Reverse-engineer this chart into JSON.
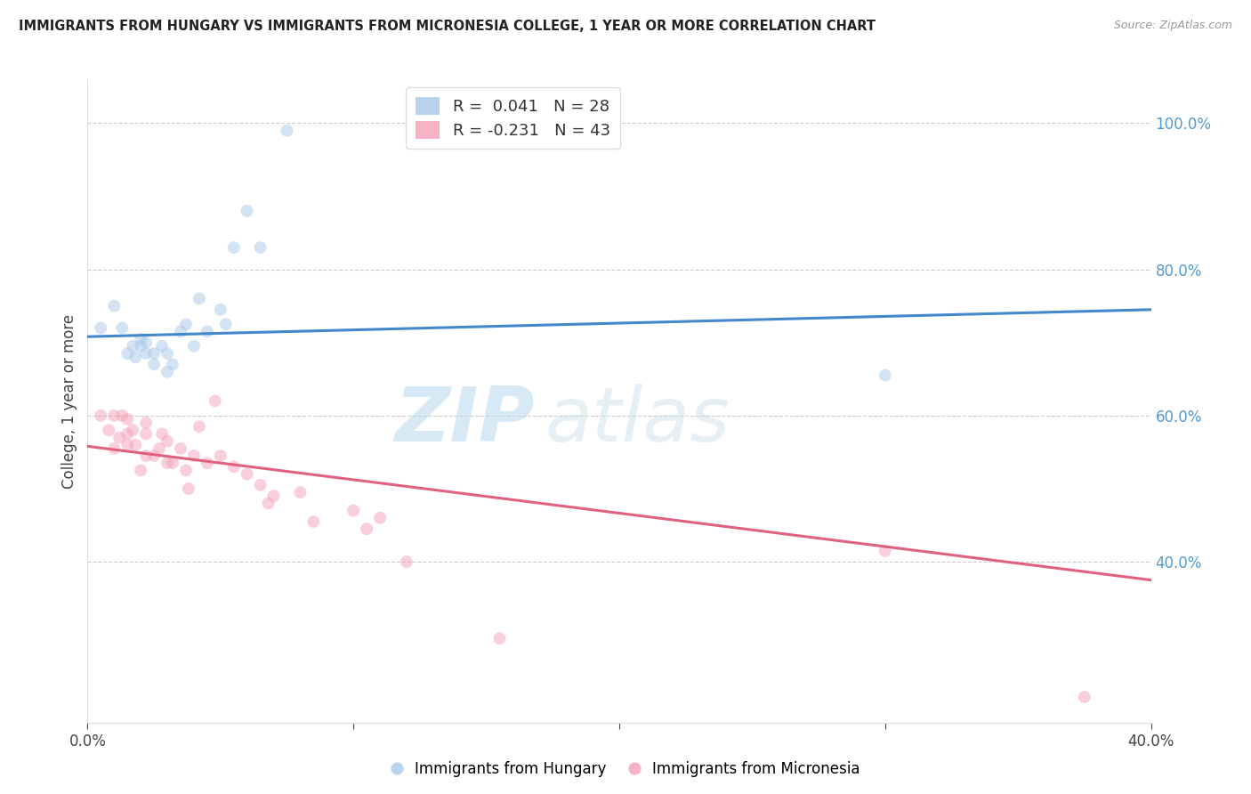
{
  "title": "IMMIGRANTS FROM HUNGARY VS IMMIGRANTS FROM MICRONESIA COLLEGE, 1 YEAR OR MORE CORRELATION CHART",
  "source": "Source: ZipAtlas.com",
  "ylabel": "College, 1 year or more",
  "xlim": [
    0.0,
    0.4
  ],
  "ylim": [
    0.18,
    1.06
  ],
  "xticks": [
    0.0,
    0.1,
    0.2,
    0.3,
    0.4
  ],
  "xticklabels": [
    "0.0%",
    "",
    "",
    "",
    "40.0%"
  ],
  "yticks_right": [
    0.4,
    0.6,
    0.8,
    1.0
  ],
  "yticklabels_right": [
    "40.0%",
    "60.0%",
    "80.0%",
    "100.0%"
  ],
  "legend_r_blue": "R =  0.041",
  "legend_n_blue": "N = 28",
  "legend_r_pink": "R = -0.231",
  "legend_n_pink": "N = 43",
  "blue_color": "#a8c8e8",
  "pink_color": "#f4a0b8",
  "blue_line_color": "#4488cc",
  "pink_line_color": "#e06080",
  "watermark_zip": "ZIP",
  "watermark_atlas": "atlas",
  "blue_scatter_x": [
    0.005,
    0.01,
    0.013,
    0.015,
    0.017,
    0.018,
    0.02,
    0.02,
    0.022,
    0.022,
    0.025,
    0.025,
    0.028,
    0.03,
    0.03,
    0.032,
    0.035,
    0.037,
    0.04,
    0.042,
    0.045,
    0.05,
    0.052,
    0.055,
    0.06,
    0.065,
    0.075,
    0.3
  ],
  "blue_scatter_y": [
    0.72,
    0.75,
    0.72,
    0.685,
    0.695,
    0.68,
    0.695,
    0.705,
    0.685,
    0.7,
    0.685,
    0.67,
    0.695,
    0.66,
    0.685,
    0.67,
    0.715,
    0.725,
    0.695,
    0.76,
    0.715,
    0.745,
    0.725,
    0.83,
    0.88,
    0.83,
    0.99,
    0.655
  ],
  "pink_scatter_x": [
    0.005,
    0.008,
    0.01,
    0.01,
    0.012,
    0.013,
    0.015,
    0.015,
    0.015,
    0.017,
    0.018,
    0.02,
    0.022,
    0.022,
    0.022,
    0.025,
    0.027,
    0.028,
    0.03,
    0.03,
    0.032,
    0.035,
    0.037,
    0.038,
    0.04,
    0.042,
    0.045,
    0.048,
    0.05,
    0.055,
    0.06,
    0.065,
    0.068,
    0.07,
    0.08,
    0.085,
    0.1,
    0.105,
    0.11,
    0.12,
    0.155,
    0.3,
    0.375
  ],
  "pink_scatter_y": [
    0.6,
    0.58,
    0.555,
    0.6,
    0.57,
    0.6,
    0.56,
    0.575,
    0.595,
    0.58,
    0.56,
    0.525,
    0.545,
    0.575,
    0.59,
    0.545,
    0.555,
    0.575,
    0.535,
    0.565,
    0.535,
    0.555,
    0.525,
    0.5,
    0.545,
    0.585,
    0.535,
    0.62,
    0.545,
    0.53,
    0.52,
    0.505,
    0.48,
    0.49,
    0.495,
    0.455,
    0.47,
    0.445,
    0.46,
    0.4,
    0.295,
    0.415,
    0.215
  ],
  "blue_trend_x": [
    0.0,
    0.4
  ],
  "blue_trend_y": [
    0.708,
    0.745
  ],
  "pink_trend_x": [
    0.0,
    0.4
  ],
  "pink_trend_y": [
    0.558,
    0.375
  ],
  "scatter_size": 100,
  "scatter_alpha": 0.5
}
